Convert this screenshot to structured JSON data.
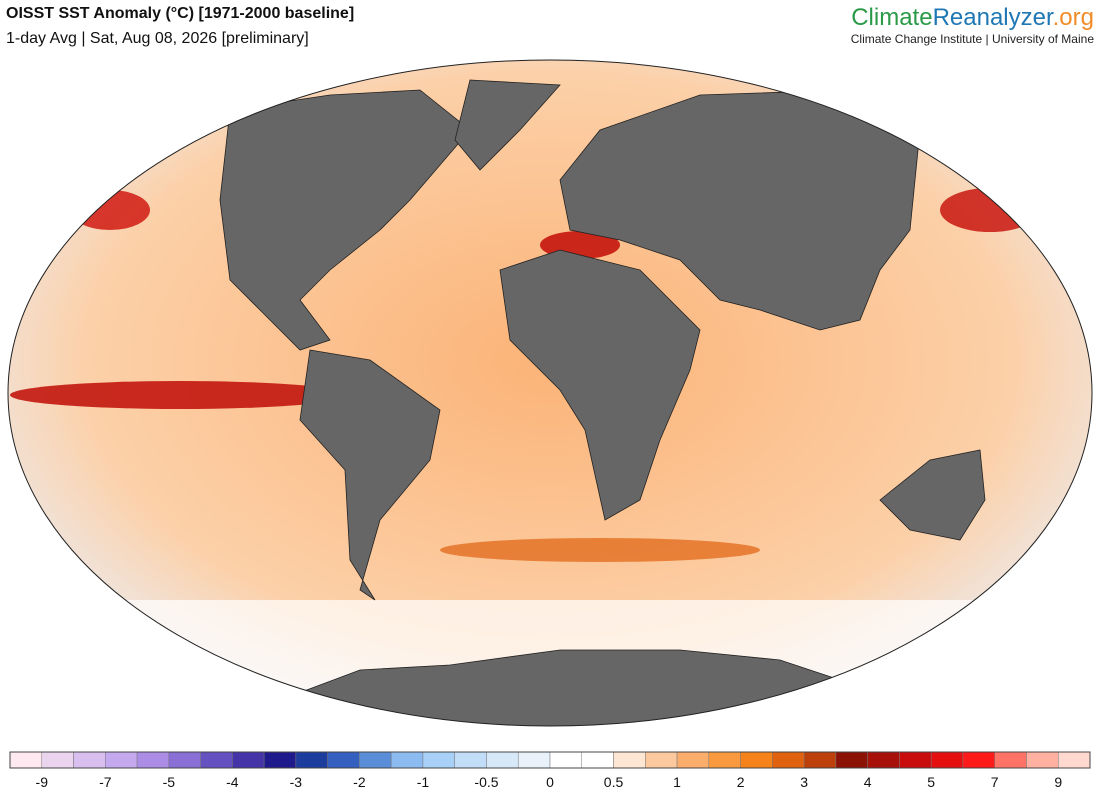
{
  "header": {
    "title": "OISST SST Anomaly (°C) [1971-2000 baseline]",
    "subtitle": "1-day Avg | Sat, Aug 08, 2026 [preliminary]"
  },
  "logo": {
    "part1": "Climate",
    "part2": "Reanalyzer",
    "part3": ".org",
    "tagline": "Climate Change Institute | University of Maine"
  },
  "colorbar": {
    "labels": [
      -9,
      -7,
      -5,
      -4,
      -3,
      -2,
      -1,
      -0.5,
      0,
      0.5,
      1,
      2,
      3,
      4,
      5,
      7,
      9
    ],
    "colors": [
      "#fde9ef",
      "#ead4ee",
      "#d9bff0",
      "#c5a9ee",
      "#ac8de6",
      "#8a6fd6",
      "#6651c0",
      "#4533a8",
      "#1f1a8c",
      "#1d3d9e",
      "#3560c0",
      "#5b8ed8",
      "#8bbbf0",
      "#a9d0f7",
      "#c2ddf7",
      "#d7e8f8",
      "#e9f2fb",
      "#ffffff",
      "#ffffff",
      "#fde6d3",
      "#fcc89d",
      "#fbae6c",
      "#f99a3e",
      "#f6821a",
      "#e0610e",
      "#bd400a",
      "#8c1205",
      "#a8100a",
      "#c90d0d",
      "#e3100f",
      "#ff1a1a",
      "#ff7266",
      "#ffb0a0",
      "#ffd8cf"
    ]
  }
}
